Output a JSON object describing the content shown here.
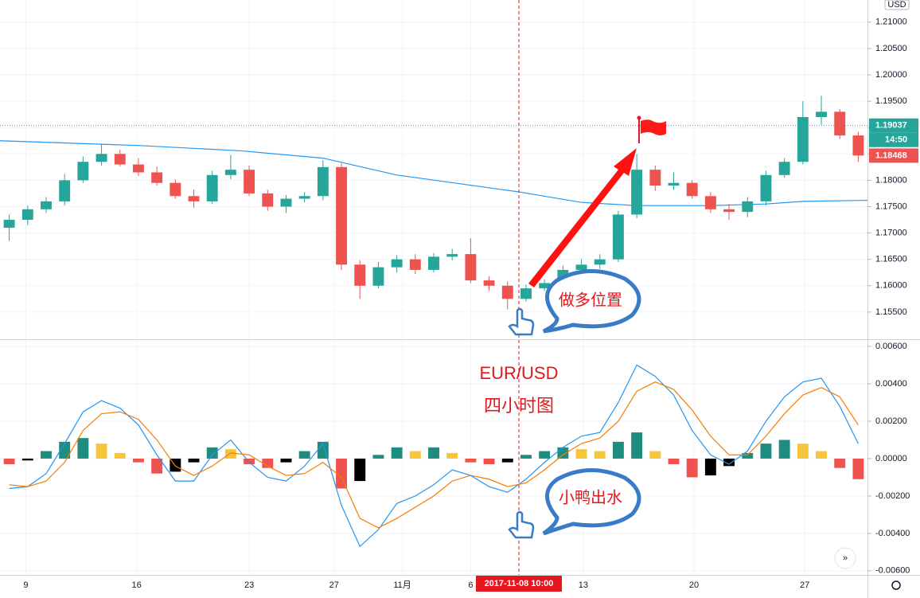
{
  "chart_data": {
    "type": "candlestick",
    "currency": "USD",
    "xlim": [
      -0.5,
      46.5
    ],
    "xticks": [
      {
        "value": 0.9,
        "label": "9"
      },
      {
        "value": 6.9,
        "label": "16"
      },
      {
        "value": 13,
        "label": "23"
      },
      {
        "value": 17.6,
        "label": "27"
      },
      {
        "value": 21.3,
        "label": "11月"
      },
      {
        "value": 25,
        "label": "6"
      },
      {
        "value": 31.1,
        "label": "13"
      },
      {
        "value": 37.1,
        "label": "20"
      },
      {
        "value": 43.1,
        "label": "27"
      }
    ],
    "crosshair_time": "2017-11-08  10:00",
    "ylim": [
      1.15,
      1.2142
    ],
    "yticks": [
      {
        "value": 1.155,
        "label": "1.15500"
      },
      {
        "value": 1.16,
        "label": "1.16000"
      },
      {
        "value": 1.165,
        "label": "1.16500"
      },
      {
        "value": 1.17,
        "label": "1.17000"
      },
      {
        "value": 1.175,
        "label": "1.17500"
      },
      {
        "value": 1.18,
        "label": "1.18000"
      },
      {
        "value": 1.185,
        "label": "1.18500"
      },
      {
        "value": 1.19,
        "label": "1.19000"
      },
      {
        "value": 1.195,
        "label": "1.19500"
      },
      {
        "value": 1.2,
        "label": "1.20000"
      },
      {
        "value": 1.205,
        "label": "1.20500"
      },
      {
        "value": 1.21,
        "label": "1.21000"
      }
    ],
    "grid": true,
    "up_color": "#26a69a",
    "down_color": "#ef5350",
    "open": [
      1.171,
      1.1725,
      1.1745,
      1.176,
      1.18,
      1.1835,
      1.185,
      1.183,
      1.1815,
      1.1795,
      1.177,
      1.176,
      1.181,
      1.182,
      1.1775,
      1.175,
      1.1765,
      1.177,
      1.1825,
      1.164,
      1.16,
      1.1635,
      1.165,
      1.163,
      1.1655,
      1.166,
      1.161,
      1.16,
      1.1575,
      1.1595,
      1.1605,
      1.163,
      1.164,
      1.165,
      1.1735,
      1.182,
      1.179,
      1.1795,
      1.177,
      1.1745,
      1.174,
      1.176,
      1.181,
      1.1835,
      1.192,
      1.193,
      1.1885
    ],
    "high": [
      1.1735,
      1.1752,
      1.1768,
      1.1812,
      1.1845,
      1.1868,
      1.1858,
      1.1842,
      1.1826,
      1.1802,
      1.1782,
      1.1818,
      1.1848,
      1.1828,
      1.1782,
      1.1772,
      1.1778,
      1.1838,
      1.1832,
      1.1648,
      1.1645,
      1.1658,
      1.166,
      1.1662,
      1.167,
      1.169,
      1.1618,
      1.1608,
      1.1602,
      1.1612,
      1.1638,
      1.165,
      1.166,
      1.1742,
      1.185,
      1.1828,
      1.1815,
      1.18,
      1.1778,
      1.1755,
      1.1768,
      1.1818,
      1.1842,
      1.195,
      1.196,
      1.1935,
      1.1892
    ],
    "low": [
      1.1685,
      1.1715,
      1.1738,
      1.1752,
      1.1795,
      1.1828,
      1.1826,
      1.1808,
      1.179,
      1.1765,
      1.1748,
      1.1755,
      1.1802,
      1.177,
      1.1742,
      1.1738,
      1.1758,
      1.1762,
      1.163,
      1.1575,
      1.1595,
      1.1625,
      1.1622,
      1.1625,
      1.1648,
      1.1605,
      1.159,
      1.1555,
      1.157,
      1.159,
      1.16,
      1.1625,
      1.1632,
      1.1645,
      1.1728,
      1.178,
      1.1782,
      1.1765,
      1.1738,
      1.1725,
      1.173,
      1.1752,
      1.1805,
      1.183,
      1.1905,
      1.1878,
      1.1835
    ],
    "close": [
      1.1725,
      1.1745,
      1.176,
      1.18,
      1.1835,
      1.185,
      1.183,
      1.1815,
      1.1795,
      1.177,
      1.176,
      1.181,
      1.182,
      1.1775,
      1.175,
      1.1765,
      1.177,
      1.1825,
      1.164,
      1.16,
      1.1635,
      1.165,
      1.163,
      1.1655,
      1.166,
      1.161,
      1.16,
      1.1575,
      1.1595,
      1.1605,
      1.163,
      1.164,
      1.165,
      1.1735,
      1.182,
      1.179,
      1.1795,
      1.177,
      1.1745,
      1.174,
      1.176,
      1.181,
      1.1835,
      1.192,
      1.193,
      1.1885,
      1.1847
    ],
    "moving_average": {
      "color": "#2196f3",
      "x": [
        -0.5,
        7,
        12.5,
        17,
        21,
        27.6,
        31,
        34,
        38,
        41,
        43,
        46.5
      ],
      "values": [
        1.1875,
        1.1866,
        1.1856,
        1.1842,
        1.181,
        1.1778,
        1.1758,
        1.1752,
        1.1752,
        1.1755,
        1.176,
        1.1762
      ]
    },
    "crosshair_price": 1.19037,
    "countdown": "14:50",
    "last_price": 1.18468,
    "macd": {
      "ylim": [
        -0.0072,
        0.0063
      ],
      "yticks": [
        {
          "value": 0.006,
          "label": "0.00600"
        },
        {
          "value": 0.004,
          "label": "0.00400"
        },
        {
          "value": 0.002,
          "label": "0.00200"
        },
        {
          "value": 0,
          "label": "0.00000"
        },
        {
          "value": -0.002,
          "label": "-0.00200"
        },
        {
          "value": -0.004,
          "label": "-0.00400"
        },
        {
          "value": -0.006,
          "label": "-0.00600"
        }
      ],
      "hist_colors": {
        "rise_above": "#1e8c7e",
        "fall_above": "#f5c53b",
        "fall_below": "#ef5350",
        "rise_below": "#000000"
      },
      "histogram": [
        -0.0003,
        -0.0001,
        0.0004,
        0.0009,
        0.0011,
        0.0008,
        0.0003,
        -0.0002,
        -0.0008,
        -0.0007,
        -0.0002,
        0.0006,
        0.0005,
        -0.0003,
        -0.0005,
        -0.0002,
        0.0004,
        0.0009,
        -0.0016,
        -0.0012,
        0.0002,
        0.0006,
        0.0004,
        0.0006,
        0.0003,
        -0.0002,
        -0.0003,
        -0.0002,
        0.0002,
        0.0004,
        0.0006,
        0.0005,
        0.0004,
        0.0009,
        0.0014,
        0.0004,
        -0.0003,
        -0.001,
        -0.0009,
        -0.0004,
        0.0003,
        0.0008,
        0.001,
        0.0008,
        0.0004,
        -0.0005,
        -0.0011
      ],
      "series": [
        {
          "color": "#2196f3",
          "values": [
            -0.0016,
            -0.0015,
            -0.0008,
            0.0008,
            0.0025,
            0.0031,
            0.0027,
            0.0018,
            0.0002,
            -0.0012,
            -0.0012,
            0.0002,
            0.001,
            -0.0002,
            -0.001,
            -0.0012,
            -0.0004,
            0.0008,
            -0.0025,
            -0.0047,
            -0.0038,
            -0.0024,
            -0.002,
            -0.0014,
            -0.0006,
            -0.0009,
            -0.0015,
            -0.0018,
            -0.0011,
            -0.0002,
            0.0006,
            0.0012,
            0.0014,
            0.003,
            0.005,
            0.0044,
            0.0034,
            0.0015,
            0.0002,
            -0.0003,
            0.0004,
            0.002,
            0.0033,
            0.0041,
            0.0043,
            0.0028,
            0.0008
          ]
        },
        {
          "color": "#f57c00",
          "values": [
            -0.0014,
            -0.0015,
            -0.0012,
            -0.0002,
            0.0015,
            0.0024,
            0.0025,
            0.0021,
            0.001,
            -0.0004,
            -0.0009,
            -0.0004,
            0.0003,
            0.0002,
            -0.0004,
            -0.0009,
            -0.0008,
            -0.0002,
            -0.001,
            -0.0032,
            -0.0037,
            -0.0032,
            -0.0026,
            -0.002,
            -0.0012,
            -0.0009,
            -0.0011,
            -0.0015,
            -0.0013,
            -0.0006,
            0.0002,
            0.0008,
            0.0011,
            0.002,
            0.0036,
            0.0041,
            0.0037,
            0.0026,
            0.0012,
            0.0002,
            0.0002,
            0.0012,
            0.0024,
            0.0034,
            0.0038,
            0.0033,
            0.0018
          ]
        }
      ]
    },
    "annotations": {
      "long_position": "做多位置",
      "duck_signal": "小鸭出水",
      "symbol": "EUR/USD",
      "timeframe": "四小时图"
    }
  }
}
